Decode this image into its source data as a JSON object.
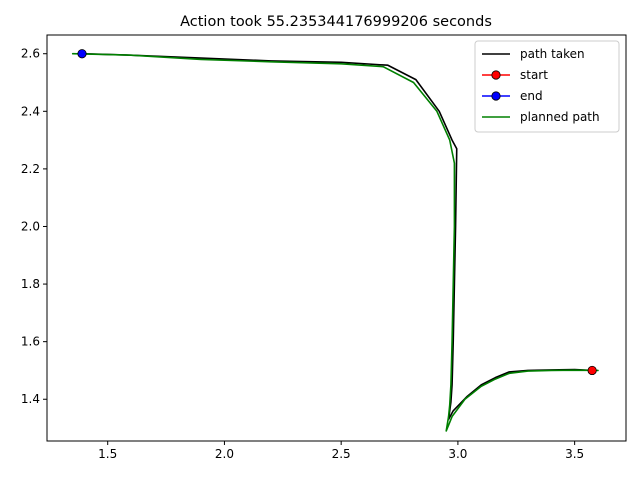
{
  "chart_data": {
    "type": "line",
    "title": "Action took 55.235344176999206 seconds",
    "xlabel": "",
    "ylabel": "",
    "xlim": [
      1.24,
      3.72
    ],
    "ylim": [
      1.255,
      2.665
    ],
    "xticks": [
      1.5,
      2.0,
      2.5,
      3.0,
      3.5
    ],
    "xtick_labels": [
      "1.5",
      "2.0",
      "2.5",
      "3.0",
      "3.5"
    ],
    "yticks": [
      1.4,
      1.6,
      1.8,
      2.0,
      2.2,
      2.4,
      2.6
    ],
    "ytick_labels": [
      "1.4",
      "1.6",
      "1.8",
      "2.0",
      "2.2",
      "2.4",
      "2.6"
    ],
    "grid": false,
    "legend_position": "top-right",
    "series": [
      {
        "name": "path taken",
        "color": "#000000",
        "x": [
          1.39,
          1.6,
          1.9,
          2.2,
          2.5,
          2.7,
          2.82,
          2.92,
          2.975,
          2.995,
          2.99,
          2.985,
          2.98,
          2.975,
          2.97,
          2.965,
          2.96,
          2.98,
          3.04,
          3.1,
          3.16,
          3.22,
          3.3,
          3.4,
          3.5,
          3.575
        ],
        "y": [
          2.6,
          2.595,
          2.585,
          2.575,
          2.57,
          2.56,
          2.51,
          2.4,
          2.3,
          2.27,
          2.0,
          1.8,
          1.6,
          1.45,
          1.39,
          1.36,
          1.33,
          1.36,
          1.41,
          1.45,
          1.475,
          1.495,
          1.5,
          1.502,
          1.503,
          1.5
        ]
      },
      {
        "name": "start",
        "color": "#ff0000",
        "x": [
          3.575
        ],
        "y": [
          1.5
        ]
      },
      {
        "name": "end",
        "color": "#0000ff",
        "x": [
          1.39
        ],
        "y": [
          2.6
        ]
      },
      {
        "name": "planned path",
        "color": "#008000",
        "x": [
          1.35,
          1.6,
          1.9,
          2.2,
          2.5,
          2.68,
          2.81,
          2.91,
          2.965,
          2.985,
          2.985,
          2.98,
          2.975,
          2.97,
          2.965,
          2.96,
          2.95,
          2.975,
          3.03,
          3.1,
          3.16,
          3.22,
          3.3,
          3.4,
          3.5,
          3.6
        ],
        "y": [
          2.6,
          2.595,
          2.58,
          2.572,
          2.565,
          2.555,
          2.5,
          2.4,
          2.3,
          2.22,
          2.0,
          1.8,
          1.6,
          1.45,
          1.38,
          1.34,
          1.29,
          1.34,
          1.4,
          1.445,
          1.47,
          1.49,
          1.498,
          1.5,
          1.501,
          1.5
        ]
      }
    ]
  }
}
